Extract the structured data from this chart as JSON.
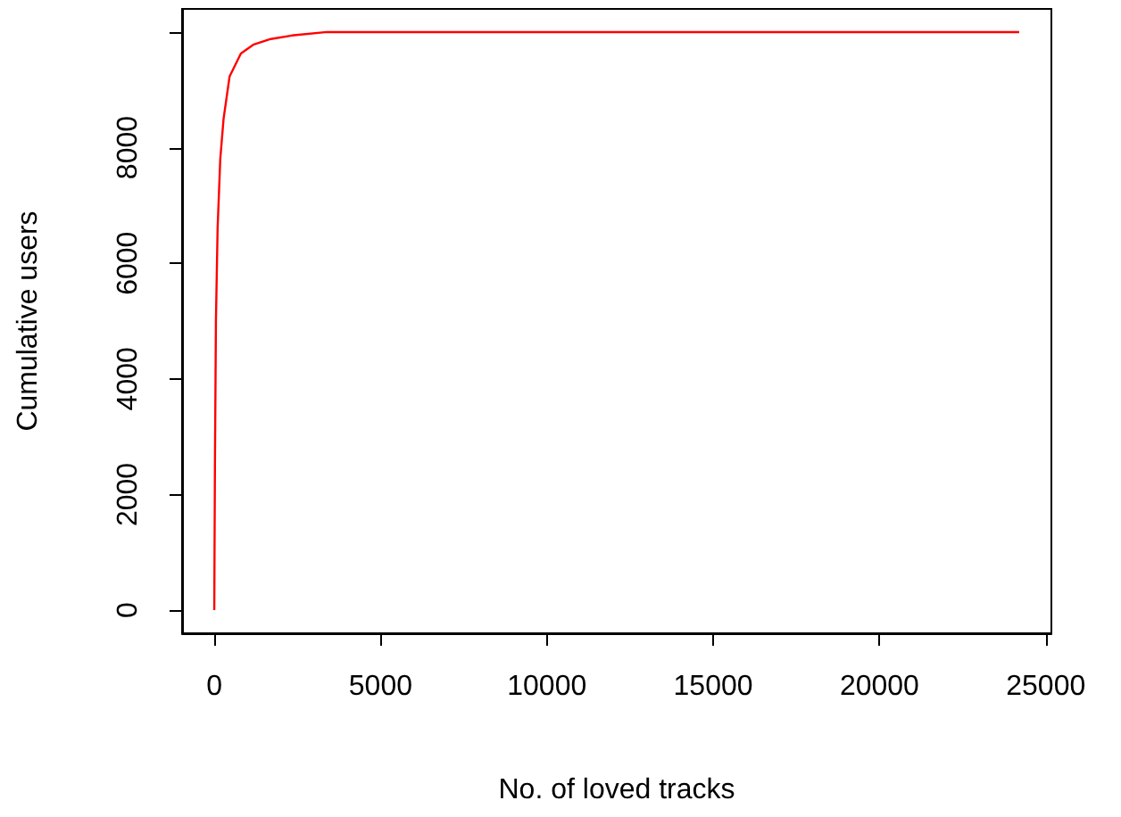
{
  "chart_data": {
    "type": "line",
    "xlabel": "No. of loved tracks",
    "ylabel": "Cumulative users",
    "x": [
      0,
      20,
      50,
      100,
      180,
      280,
      460,
      800,
      1170,
      1700,
      2330,
      3390,
      24200
    ],
    "series": [
      {
        "color": "#ff0000",
        "values": [
          0,
          2500,
          5000,
          6600,
          7800,
          8500,
          9230,
          9630,
          9780,
          9880,
          9940,
          10000,
          10000
        ]
      }
    ],
    "xlim": [
      -968,
      25168
    ],
    "xticks": [
      0,
      5000,
      10000,
      15000,
      20000,
      25000
    ],
    "ylim": [
      -400,
      10400
    ],
    "yticks": [
      0,
      2000,
      4000,
      6000,
      8000,
      {
        "value": 10000,
        "label": null
      }
    ],
    "marker": "none",
    "line_style": "solid"
  }
}
